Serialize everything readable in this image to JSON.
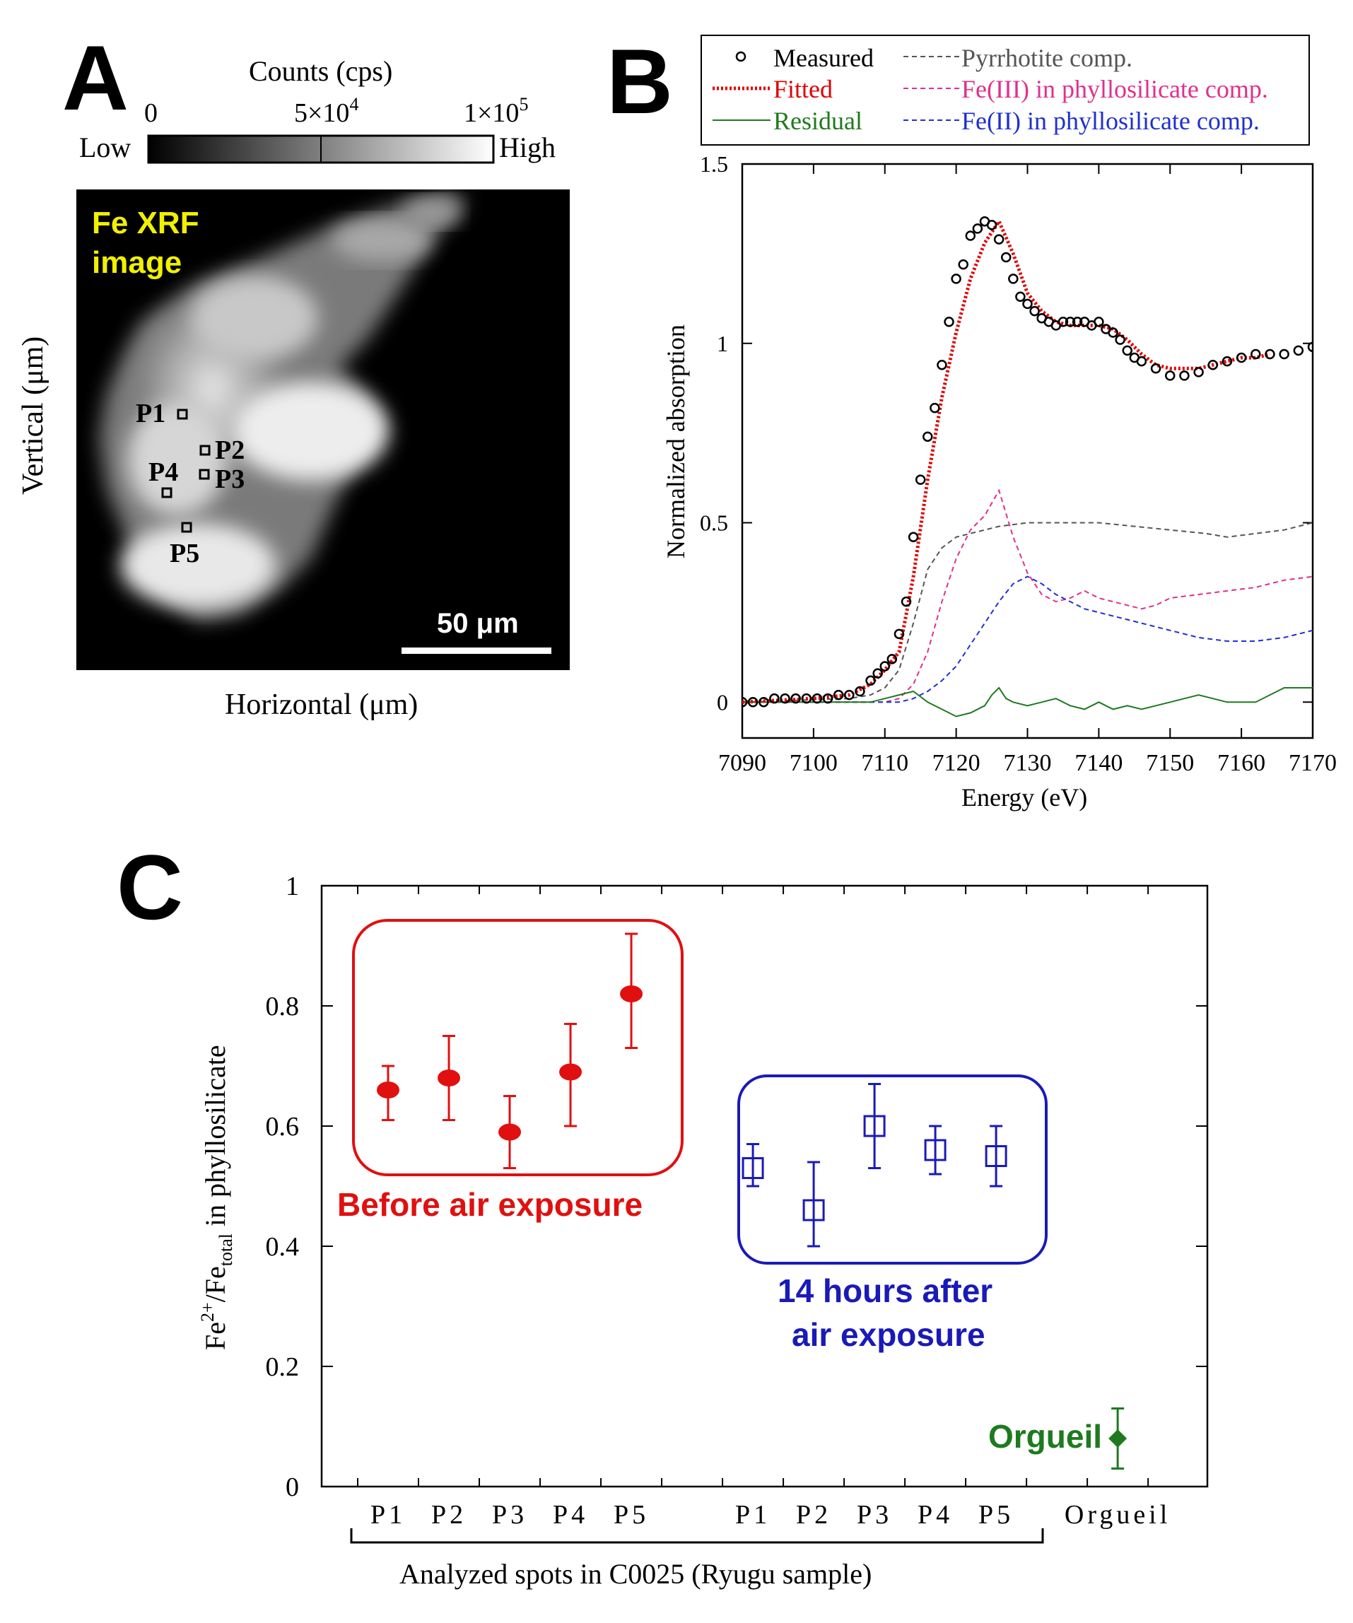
{
  "panel_a": {
    "letter": "A",
    "colorbar": {
      "title": "Counts (cps)",
      "low_label": "Low",
      "high_label": "High",
      "ticks": [
        {
          "base": "0",
          "exp": ""
        },
        {
          "base": "5×10",
          "exp": "4"
        },
        {
          "base": "1×10",
          "exp": "5"
        }
      ]
    },
    "image_label_line1": "Fe XRF",
    "image_label_line2": "image",
    "spots": [
      "P1",
      "P2",
      "P3",
      "P4",
      "P5"
    ],
    "scale_bar": "50 μm",
    "xlabel": "Horizontal (μm)",
    "ylabel": "Vertical (μm)"
  },
  "panel_b": {
    "letter": "B",
    "legend": {
      "measured": "Measured",
      "fitted": "Fitted",
      "residual": "Residual",
      "pyrrhotite": "Pyrrhotite comp.",
      "fe3": "Fe(III) in phyllosilicate comp.",
      "fe2": "Fe(II) in phyllosilicate comp."
    },
    "colors": {
      "measured": "#000000",
      "fitted": "#e00000",
      "residual": "#1f7a1f",
      "pyrrhotite": "#555555",
      "fe3": "#e0308c",
      "fe2": "#2030d0"
    }
  },
  "panel_c": {
    "letter": "C",
    "before_label": "Before air exposure",
    "after_label_line1": "14 hours after",
    "after_label_line2": "air exposure",
    "orgueil_label": "Orgueil",
    "colors": {
      "before": "#e01010",
      "after": "#1a1ab8",
      "orgueil": "#1f7a1f"
    }
  },
  "chart_data": [
    {
      "type": "line",
      "title": "",
      "xlabel": "Energy (eV)",
      "ylabel": "Normalized absorption",
      "xlim": [
        7090,
        7170
      ],
      "ylim": [
        -0.1,
        1.5
      ],
      "xticks": [
        7090,
        7100,
        7110,
        7120,
        7130,
        7140,
        7150,
        7160,
        7170
      ],
      "yticks": [
        0,
        0.5,
        1,
        1.5
      ],
      "ytick_labels": [
        "0",
        "0.5",
        "1",
        "1.5"
      ],
      "series": [
        {
          "name": "Measured",
          "style": "markers",
          "x": [
            7090,
            7091.5,
            7093,
            7094.5,
            7096,
            7097.5,
            7099,
            7100.5,
            7102,
            7103.5,
            7105,
            7106.5,
            7108,
            7109,
            7110,
            7111,
            7112,
            7113,
            7114,
            7115,
            7116,
            7117,
            7118,
            7119,
            7120,
            7121,
            7122,
            7123,
            7124,
            7125,
            7126,
            7127,
            7128,
            7129,
            7130,
            7131,
            7132,
            7133,
            7134,
            7135,
            7136,
            7137,
            7138,
            7139,
            7140,
            7141,
            7142,
            7143,
            7144,
            7145,
            7146,
            7148,
            7150,
            7152,
            7154,
            7156,
            7158,
            7160,
            7162,
            7164,
            7166,
            7168,
            7170
          ],
          "y": [
            0.0,
            0.0,
            0.0,
            0.01,
            0.01,
            0.01,
            0.01,
            0.01,
            0.01,
            0.02,
            0.02,
            0.03,
            0.06,
            0.08,
            0.1,
            0.12,
            0.19,
            0.28,
            0.46,
            0.62,
            0.74,
            0.82,
            0.94,
            1.06,
            1.18,
            1.22,
            1.3,
            1.32,
            1.34,
            1.33,
            1.29,
            1.24,
            1.18,
            1.13,
            1.11,
            1.09,
            1.07,
            1.06,
            1.05,
            1.06,
            1.06,
            1.06,
            1.06,
            1.05,
            1.06,
            1.04,
            1.03,
            1.01,
            0.98,
            0.96,
            0.95,
            0.93,
            0.91,
            0.91,
            0.92,
            0.94,
            0.95,
            0.96,
            0.97,
            0.97,
            0.97,
            0.98,
            0.99
          ]
        },
        {
          "name": "Fitted",
          "style": "dotted",
          "x": [
            7090,
            7100,
            7105,
            7108,
            7110,
            7112,
            7114,
            7116,
            7118,
            7120,
            7122,
            7124,
            7126,
            7128,
            7130,
            7132,
            7134,
            7136,
            7138,
            7140,
            7142,
            7144,
            7146,
            7148,
            7150,
            7152,
            7154,
            7156,
            7158,
            7160,
            7162,
            7164
          ],
          "y": [
            0.0,
            0.01,
            0.02,
            0.05,
            0.09,
            0.14,
            0.35,
            0.62,
            0.85,
            1.03,
            1.18,
            1.28,
            1.34,
            1.25,
            1.14,
            1.09,
            1.06,
            1.05,
            1.05,
            1.05,
            1.04,
            1.01,
            0.97,
            0.94,
            0.93,
            0.93,
            0.93,
            0.94,
            0.95,
            0.96,
            0.96,
            0.97
          ]
        },
        {
          "name": "Residual",
          "style": "solid",
          "x": [
            7090,
            7100,
            7108,
            7110,
            7112,
            7114,
            7116,
            7118,
            7120,
            7122,
            7124,
            7125,
            7126,
            7127,
            7128,
            7130,
            7132,
            7134,
            7136,
            7138,
            7140,
            7142,
            7144,
            7146,
            7148,
            7150,
            7152,
            7154,
            7156,
            7158,
            7160,
            7162,
            7164,
            7166,
            7168,
            7170
          ],
          "y": [
            0.0,
            0.0,
            0.0,
            0.01,
            0.02,
            0.03,
            0.0,
            -0.02,
            -0.04,
            -0.03,
            -0.01,
            0.02,
            0.04,
            0.01,
            0.0,
            -0.01,
            0.0,
            0.01,
            -0.01,
            -0.02,
            0.0,
            -0.02,
            -0.01,
            -0.02,
            -0.01,
            0.0,
            0.01,
            0.02,
            0.01,
            0.0,
            0.0,
            0.0,
            0.02,
            0.04,
            0.04,
            0.04
          ]
        },
        {
          "name": "Pyrrhotite comp.",
          "style": "dashed",
          "x": [
            7090,
            7105,
            7108,
            7110,
            7112,
            7114,
            7116,
            7118,
            7120,
            7122,
            7124,
            7126,
            7130,
            7135,
            7140,
            7145,
            7150,
            7155,
            7158,
            7162,
            7166,
            7170
          ],
          "y": [
            0.0,
            0.01,
            0.02,
            0.04,
            0.09,
            0.22,
            0.37,
            0.43,
            0.46,
            0.47,
            0.48,
            0.49,
            0.5,
            0.5,
            0.5,
            0.49,
            0.48,
            0.47,
            0.46,
            0.47,
            0.48,
            0.5
          ]
        },
        {
          "name": "Fe(III) in phyllosilicate comp.",
          "style": "dashed",
          "x": [
            7090,
            7110,
            7112,
            7114,
            7116,
            7118,
            7120,
            7122,
            7124,
            7126,
            7128,
            7130,
            7132,
            7134,
            7136,
            7138,
            7140,
            7142,
            7144,
            7146,
            7148,
            7150,
            7154,
            7158,
            7162,
            7166,
            7170
          ],
          "y": [
            0.0,
            0.0,
            0.01,
            0.05,
            0.14,
            0.28,
            0.4,
            0.48,
            0.52,
            0.59,
            0.46,
            0.36,
            0.3,
            0.28,
            0.29,
            0.31,
            0.29,
            0.28,
            0.27,
            0.26,
            0.27,
            0.29,
            0.3,
            0.31,
            0.32,
            0.34,
            0.35
          ]
        },
        {
          "name": "Fe(II) in phyllosilicate comp.",
          "style": "dashed",
          "x": [
            7090,
            7112,
            7114,
            7116,
            7118,
            7120,
            7122,
            7124,
            7126,
            7128,
            7130,
            7132,
            7134,
            7136,
            7138,
            7140,
            7142,
            7144,
            7146,
            7148,
            7150,
            7154,
            7158,
            7162,
            7166,
            7170
          ],
          "y": [
            0.0,
            0.0,
            0.01,
            0.03,
            0.06,
            0.1,
            0.16,
            0.22,
            0.28,
            0.33,
            0.35,
            0.33,
            0.3,
            0.28,
            0.26,
            0.25,
            0.24,
            0.23,
            0.22,
            0.21,
            0.2,
            0.18,
            0.17,
            0.17,
            0.18,
            0.2
          ]
        }
      ]
    },
    {
      "type": "scatter",
      "title": "",
      "xlabel": "Analyzed spots in C0025 (Ryugu sample)",
      "ylabel_base": "Fe",
      "ylabel_sup": "2+",
      "ylabel_mid": "/Fe",
      "ylabel_sub": "total",
      "ylabel_tail": " in phyllosilicate",
      "ylim": [
        0,
        1
      ],
      "yticks": [
        0,
        0.2,
        0.4,
        0.6,
        0.8,
        1
      ],
      "ytick_labels": [
        "0",
        "0.2",
        "0.4",
        "0.6",
        "0.8",
        "1"
      ],
      "categories": [
        "P1",
        "P2",
        "P3",
        "P4",
        "P5",
        "P1",
        "P2",
        "P3",
        "P4",
        "P5",
        "Orgueil"
      ],
      "category_positions": [
        1,
        2,
        3,
        4,
        5,
        7,
        8,
        9,
        10,
        11,
        13
      ],
      "xlim": [
        0,
        14
      ],
      "series": [
        {
          "name": "Before air exposure",
          "marker": "filled-circle",
          "x": [
            1,
            2,
            3,
            4,
            5
          ],
          "y": [
            0.66,
            0.68,
            0.59,
            0.69,
            0.82
          ],
          "err_low": [
            0.61,
            0.61,
            0.53,
            0.6,
            0.73
          ],
          "err_high": [
            0.7,
            0.75,
            0.65,
            0.77,
            0.92
          ]
        },
        {
          "name": "14 hours after air exposure",
          "marker": "open-square",
          "x": [
            7,
            8,
            9,
            10,
            11
          ],
          "y": [
            0.53,
            0.46,
            0.6,
            0.56,
            0.55
          ],
          "err_low": [
            0.5,
            0.4,
            0.53,
            0.52,
            0.5
          ],
          "err_high": [
            0.57,
            0.54,
            0.67,
            0.6,
            0.6
          ]
        },
        {
          "name": "Orgueil",
          "marker": "filled-diamond",
          "x": [
            13
          ],
          "y": [
            0.08
          ],
          "err_low": [
            0.03
          ],
          "err_high": [
            0.13
          ]
        }
      ]
    }
  ]
}
